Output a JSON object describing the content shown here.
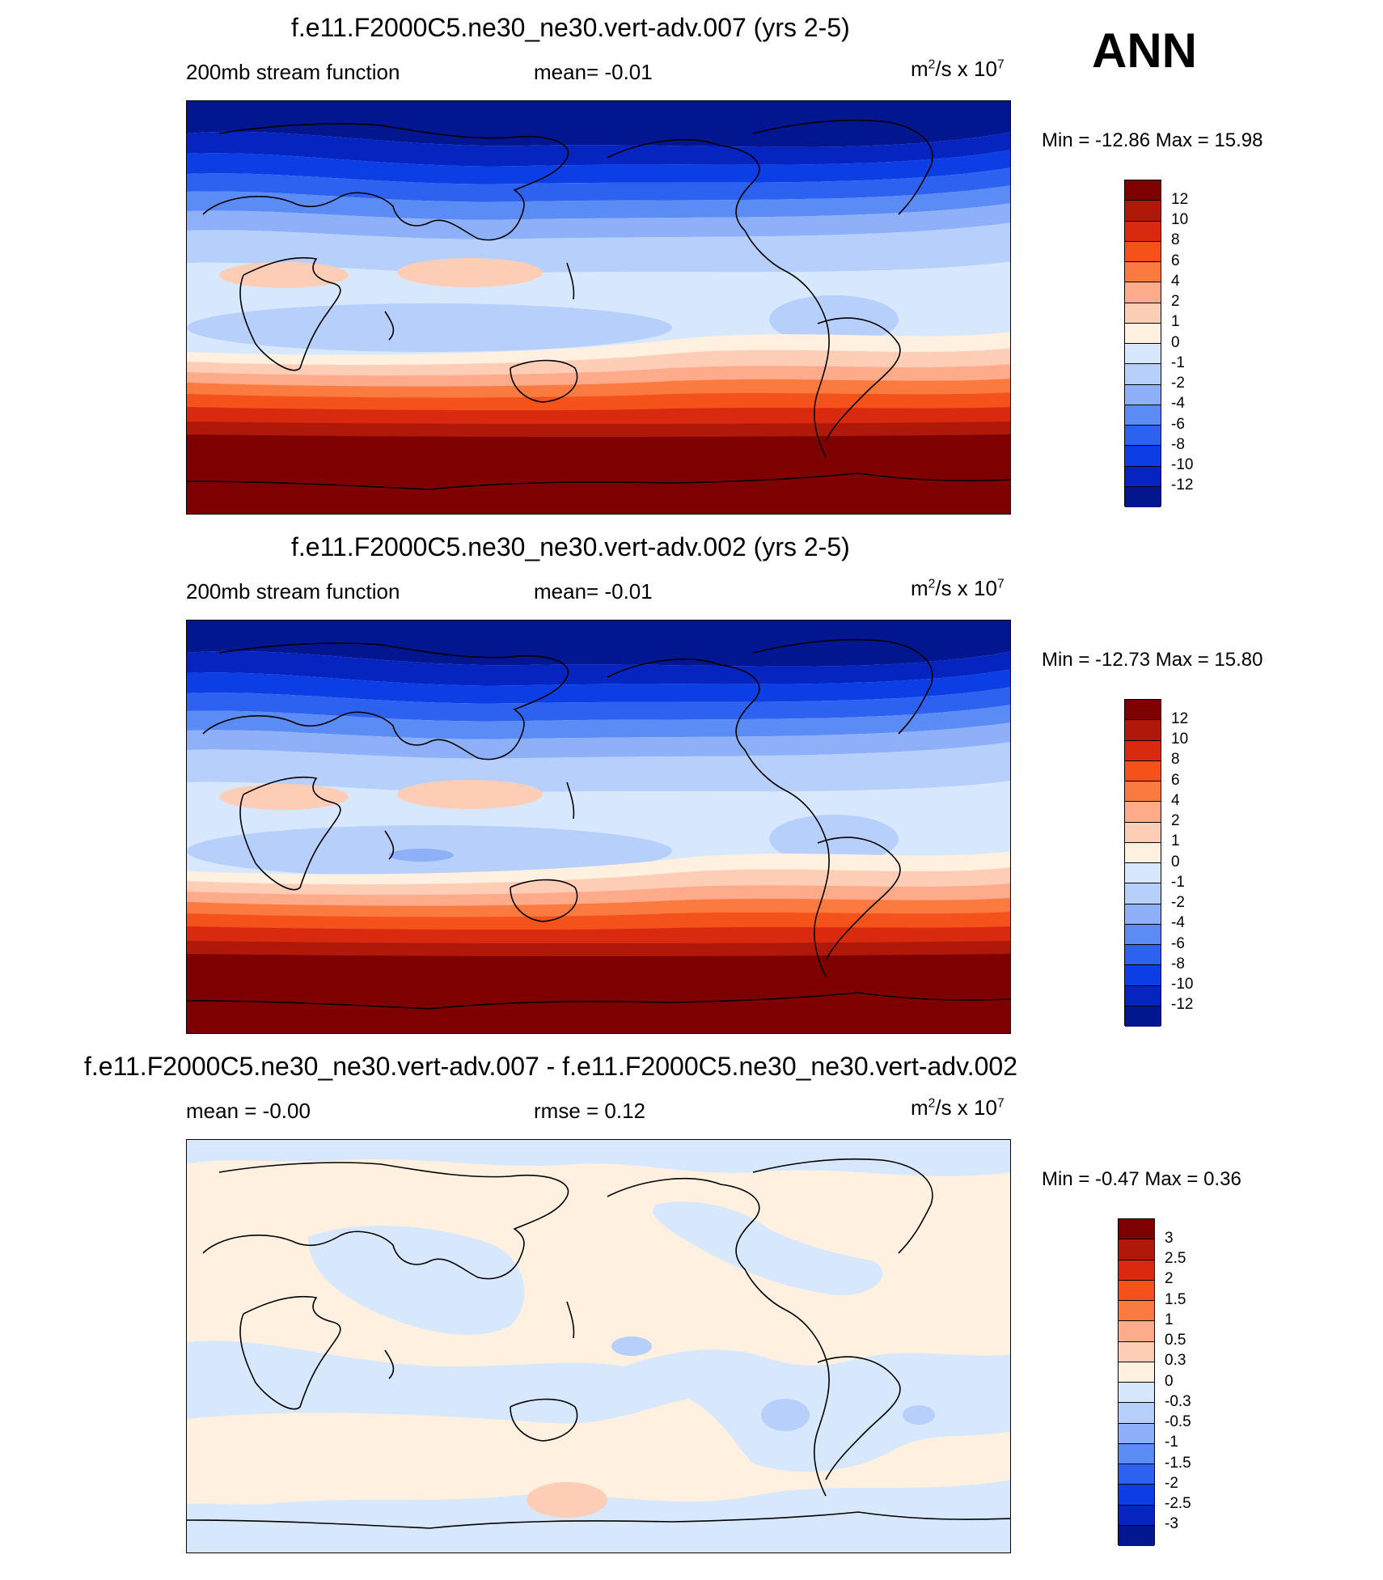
{
  "season": "ANN",
  "units_base": "m",
  "units_exp": "2",
  "units_mid": "/s x 10",
  "units_pow": "7",
  "panels": [
    {
      "title": "f.e11.F2000C5.ne30_ne30.vert-adv.007 (yrs 2-5)",
      "left": "200mb stream function",
      "center": "mean=  -0.01",
      "minmax": "Min = -12.86 Max =  15.98",
      "colors": [
        "#7f0000",
        "#b0190a",
        "#d92a10",
        "#f4521a",
        "#fa7a3f",
        "#fdab8a",
        "#fecdb6",
        "#fff0e0",
        "#d7e8fd",
        "#b6cffb",
        "#8db0f8",
        "#5b8bf4",
        "#2d62f0",
        "#0c3ee6",
        "#0524c0",
        "#021690"
      ],
      "labels": [
        "12",
        "10",
        "8",
        "6",
        "4",
        "2",
        "1",
        "0",
        "-1",
        "-2",
        "-4",
        "-6",
        "-8",
        "-10",
        "-12"
      ]
    },
    {
      "title": "f.e11.F2000C5.ne30_ne30.vert-adv.002 (yrs 2-5)",
      "left": "200mb stream function",
      "center": "mean=  -0.01",
      "minmax": "Min = -12.73 Max =  15.80",
      "colors": [
        "#7f0000",
        "#b0190a",
        "#d92a10",
        "#f4521a",
        "#fa7a3f",
        "#fdab8a",
        "#fecdb6",
        "#fff0e0",
        "#d7e8fd",
        "#b6cffb",
        "#8db0f8",
        "#5b8bf4",
        "#2d62f0",
        "#0c3ee6",
        "#0524c0",
        "#021690"
      ],
      "labels": [
        "12",
        "10",
        "8",
        "6",
        "4",
        "2",
        "1",
        "0",
        "-1",
        "-2",
        "-4",
        "-6",
        "-8",
        "-10",
        "-12"
      ]
    },
    {
      "title": "f.e11.F2000C5.ne30_ne30.vert-adv.007 - f.e11.F2000C5.ne30_ne30.vert-adv.002",
      "left": "mean =  -0.00",
      "center": "rmse =   0.12",
      "minmax": "Min =  -0.47 Max =   0.36",
      "colors": [
        "#7f0000",
        "#b0190a",
        "#d92a10",
        "#f4521a",
        "#fa7a3f",
        "#fdab8a",
        "#fecdb6",
        "#fff0e0",
        "#d7e8fd",
        "#b6cffb",
        "#8db0f8",
        "#5b8bf4",
        "#2d62f0",
        "#0c3ee6",
        "#0524c0",
        "#021690"
      ],
      "labels": [
        "3",
        "2.5",
        "2",
        "1.5",
        "1",
        "0.5",
        "0.3",
        "0",
        "-0.3",
        "-0.5",
        "-1",
        "-1.5",
        "-2",
        "-2.5",
        "-3"
      ]
    }
  ]
}
